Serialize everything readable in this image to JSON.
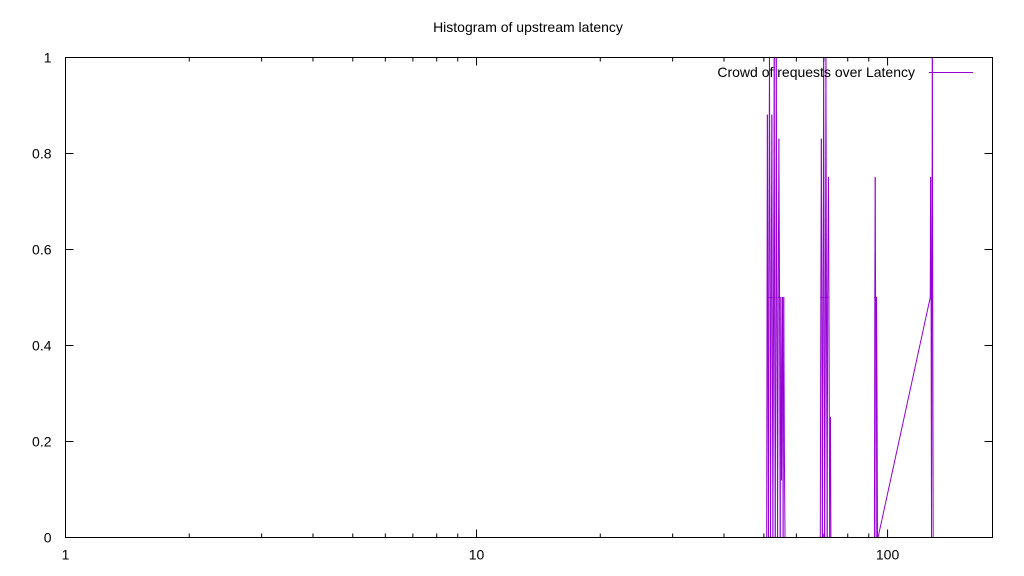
{
  "chart_data": {
    "type": "line",
    "title": "Histogram of upstream latency",
    "xlabel": "",
    "ylabel": "",
    "x_scale": "log",
    "xlim": [
      1,
      180
    ],
    "ylim": [
      0,
      1
    ],
    "x_ticks": [
      1,
      10,
      100
    ],
    "x_tick_labels": [
      "1",
      "10",
      "100"
    ],
    "y_ticks": [
      0,
      0.2,
      0.4,
      0.6,
      0.8,
      1
    ],
    "y_tick_labels": [
      "0",
      "0.2",
      "0.4",
      "0.6",
      "0.8",
      "1"
    ],
    "grid": false,
    "legend_position": "top-right",
    "series": [
      {
        "name": "Crowd of requests over Latency",
        "color": "#9400d3",
        "x": [
          50.8,
          50.9,
          51.0,
          51.1,
          51.3,
          51.4,
          51.6,
          51.8,
          51.9,
          52.1,
          52.3,
          52.4,
          52.6,
          52.8,
          53.0,
          53.1,
          53.3,
          53.5,
          53.6,
          53.8,
          54.0,
          54.2,
          54.4,
          54.6,
          54.8,
          55.0,
          55.2,
          55.5,
          55.7,
          55.9,
          56.1,
          56.3,
          68.6,
          68.8,
          69.0,
          69.2,
          69.4,
          69.7,
          69.9,
          70.1,
          70.3,
          70.6,
          70.8,
          71.0,
          71.3,
          71.5,
          71.8,
          72.0,
          72.3,
          72.6,
          72.8,
          92.9,
          93.1,
          93.3,
          93.5,
          93.8,
          94.0,
          94.3,
          94.5,
          94.8,
          127.0,
          127.3,
          127.6,
          127.9,
          128.2,
          128.5,
          128.8,
          129.1
        ],
        "values": [
          0,
          0.5,
          0.88,
          0.5,
          0,
          0.5,
          1,
          0.5,
          0,
          0.5,
          0.88,
          0.5,
          0,
          0.5,
          1,
          0.5,
          0,
          0.5,
          1,
          0.5,
          0,
          0.5,
          0.83,
          0.5,
          0,
          0.5,
          0.12,
          0.5,
          0,
          0.5,
          0.17,
          0,
          0,
          0.5,
          0.83,
          0.5,
          0,
          0.5,
          1,
          0.5,
          0,
          0.5,
          1,
          0.5,
          0,
          0.5,
          0.75,
          0.5,
          0,
          0.25,
          0,
          0,
          0.5,
          0.75,
          0.5,
          0,
          0.5,
          0.25,
          0,
          0,
          0.5,
          0.75,
          0.5,
          0,
          0.5,
          1,
          0.5,
          0
        ]
      }
    ]
  }
}
